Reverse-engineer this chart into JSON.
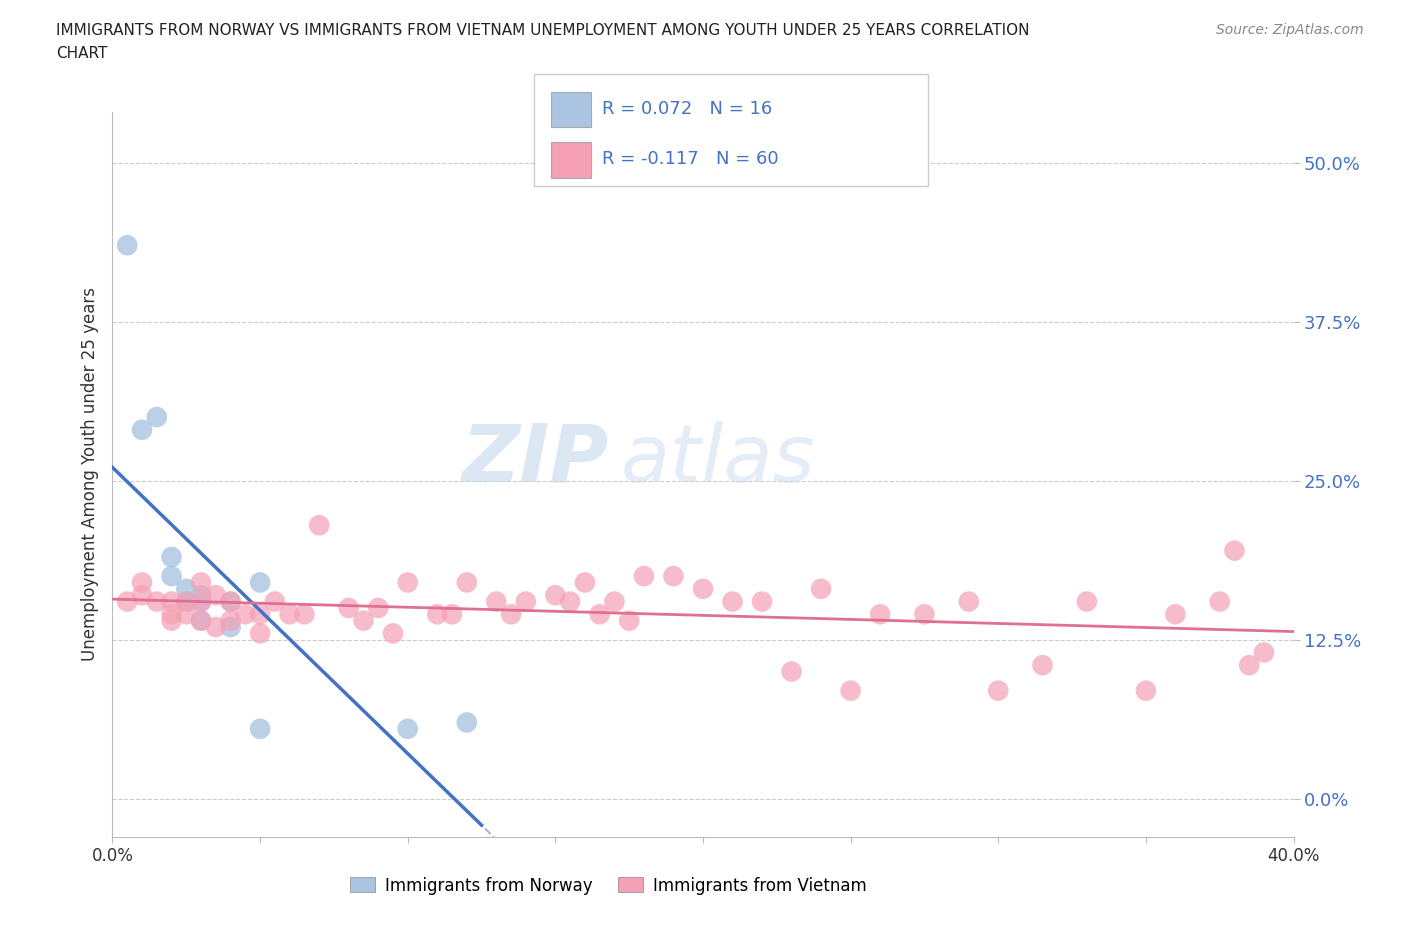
{
  "title_line1": "IMMIGRANTS FROM NORWAY VS IMMIGRANTS FROM VIETNAM UNEMPLOYMENT AMONG YOUTH UNDER 25 YEARS CORRELATION",
  "title_line2": "CHART",
  "source": "Source: ZipAtlas.com",
  "ylabel": "Unemployment Among Youth under 25 years",
  "xlim": [
    0.0,
    0.4
  ],
  "ylim": [
    -0.03,
    0.54
  ],
  "yticks": [
    0.0,
    0.125,
    0.25,
    0.375,
    0.5
  ],
  "ytick_labels": [
    "0.0%",
    "12.5%",
    "25.0%",
    "37.5%",
    "50.0%"
  ],
  "xticks": [
    0.0,
    0.05,
    0.1,
    0.15,
    0.2,
    0.25,
    0.3,
    0.35,
    0.4
  ],
  "xtick_labels": [
    "0.0%",
    "",
    "",
    "",
    "",
    "",
    "",
    "",
    "40.0%"
  ],
  "norway_R": 0.072,
  "norway_N": 16,
  "vietnam_R": -0.117,
  "vietnam_N": 60,
  "norway_color": "#aac4e2",
  "vietnam_color": "#f5a0b5",
  "norway_line_color": "#4472c4",
  "vietnam_line_color": "#e07090",
  "trend_dashed_color": "#a0b8d8",
  "background_color": "#ffffff",
  "watermark": "ZIPatlas",
  "norway_scatter_x": [
    0.005,
    0.01,
    0.015,
    0.02,
    0.02,
    0.025,
    0.025,
    0.03,
    0.03,
    0.03,
    0.04,
    0.04,
    0.05,
    0.05,
    0.1,
    0.12
  ],
  "norway_scatter_y": [
    0.435,
    0.29,
    0.3,
    0.175,
    0.19,
    0.155,
    0.165,
    0.14,
    0.155,
    0.16,
    0.135,
    0.155,
    0.055,
    0.17,
    0.055,
    0.06
  ],
  "vietnam_scatter_x": [
    0.005,
    0.01,
    0.01,
    0.015,
    0.02,
    0.02,
    0.02,
    0.025,
    0.025,
    0.03,
    0.03,
    0.03,
    0.035,
    0.035,
    0.04,
    0.04,
    0.045,
    0.05,
    0.05,
    0.055,
    0.06,
    0.065,
    0.07,
    0.08,
    0.085,
    0.09,
    0.095,
    0.1,
    0.11,
    0.115,
    0.12,
    0.13,
    0.135,
    0.14,
    0.15,
    0.155,
    0.16,
    0.165,
    0.17,
    0.175,
    0.18,
    0.19,
    0.2,
    0.21,
    0.22,
    0.23,
    0.24,
    0.25,
    0.26,
    0.275,
    0.29,
    0.3,
    0.315,
    0.33,
    0.35,
    0.36,
    0.375,
    0.38,
    0.385,
    0.39
  ],
  "vietnam_scatter_y": [
    0.155,
    0.17,
    0.16,
    0.155,
    0.155,
    0.145,
    0.14,
    0.155,
    0.145,
    0.17,
    0.155,
    0.14,
    0.16,
    0.135,
    0.155,
    0.14,
    0.145,
    0.145,
    0.13,
    0.155,
    0.145,
    0.145,
    0.215,
    0.15,
    0.14,
    0.15,
    0.13,
    0.17,
    0.145,
    0.145,
    0.17,
    0.155,
    0.145,
    0.155,
    0.16,
    0.155,
    0.17,
    0.145,
    0.155,
    0.14,
    0.175,
    0.175,
    0.165,
    0.155,
    0.155,
    0.1,
    0.165,
    0.085,
    0.145,
    0.145,
    0.155,
    0.085,
    0.105,
    0.155,
    0.085,
    0.145,
    0.155,
    0.195,
    0.105,
    0.115
  ]
}
